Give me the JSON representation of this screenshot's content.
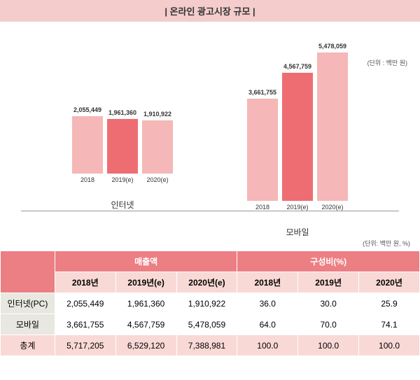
{
  "title_bar": {
    "text": "| 온라인 광고시장 규모 |",
    "bg_color": "#f4cccc",
    "text_color": "#333333"
  },
  "chart": {
    "unit_text": "(단위 : 백만 원)",
    "max_value": 6000000,
    "groups": [
      {
        "label": "인터넷",
        "bars": [
          {
            "x": "2018",
            "value": 2055449,
            "value_text": "2,055,449",
            "color": "#f5b7b7"
          },
          {
            "x": "2019(e)",
            "value": 1961360,
            "value_text": "1,961,360",
            "color": "#ee6d72"
          },
          {
            "x": "2020(e)",
            "value": 1910922,
            "value_text": "1,910,922",
            "color": "#f5b7b7"
          }
        ]
      },
      {
        "label": "모바일",
        "bars": [
          {
            "x": "2018",
            "value": 3661755,
            "value_text": "3,661,755",
            "color": "#f5b7b7"
          },
          {
            "x": "2019(e)",
            "value": 4567759,
            "value_text": "4,567,759",
            "color": "#ee6d72"
          },
          {
            "x": "2020(e)",
            "value": 5478059,
            "value_text": "5,478,059",
            "color": "#f5b7b7"
          }
        ]
      }
    ]
  },
  "table": {
    "unit_text": "(단위: 백만 원, %)",
    "colors": {
      "header_bg": "#ec7f84",
      "header_text": "#ffffff",
      "subheader_bg": "#f9d9d5",
      "rowlabel_bg": "#e8e8e0",
      "total_bg": "#f9d9d5",
      "cell_bg": "#ffffff"
    },
    "head_group1": {
      "label": "매출액",
      "span": 3
    },
    "head_group2": {
      "label": "구성비(%)",
      "span": 3
    },
    "subheaders": [
      "2018년",
      "2019년(e)",
      "2020년(e)",
      "2018년",
      "2019년",
      "2020년"
    ],
    "rows": [
      {
        "label": "인터넷(PC)",
        "cells": [
          "2,055,449",
          "1,961,360",
          "1,910,922",
          "36.0",
          "30.0",
          "25.9"
        ],
        "is_total": false
      },
      {
        "label": "모바일",
        "cells": [
          "3,661,755",
          "4,567,759",
          "5,478,059",
          "64.0",
          "70.0",
          "74.1"
        ],
        "is_total": false
      },
      {
        "label": "총계",
        "cells": [
          "5,717,205",
          "6,529,120",
          "7,388,981",
          "100.0",
          "100.0",
          "100.0"
        ],
        "is_total": true
      }
    ]
  }
}
